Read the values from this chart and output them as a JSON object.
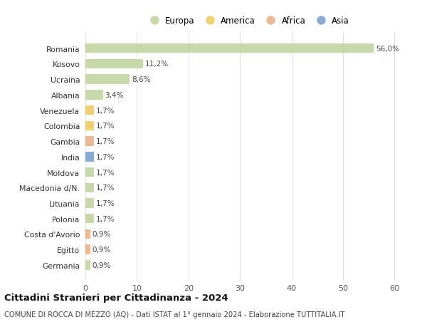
{
  "countries": [
    "Romania",
    "Kosovo",
    "Ucraina",
    "Albania",
    "Venezuela",
    "Colombia",
    "Gambia",
    "India",
    "Moldova",
    "Macedonia d/N.",
    "Lituania",
    "Polonia",
    "Costa d'Avorio",
    "Egitto",
    "Germania"
  ],
  "values": [
    56.0,
    11.2,
    8.6,
    3.4,
    1.7,
    1.7,
    1.7,
    1.7,
    1.7,
    1.7,
    1.7,
    1.7,
    0.9,
    0.9,
    0.9
  ],
  "labels": [
    "56,0%",
    "11,2%",
    "8,6%",
    "3,4%",
    "1,7%",
    "1,7%",
    "1,7%",
    "1,7%",
    "1,7%",
    "1,7%",
    "1,7%",
    "1,7%",
    "0,9%",
    "0,9%",
    "0,9%"
  ],
  "continents": [
    "Europa",
    "Europa",
    "Europa",
    "Europa",
    "America",
    "America",
    "Africa",
    "Asia",
    "Europa",
    "Europa",
    "Europa",
    "Europa",
    "Africa",
    "Africa",
    "Europa"
  ],
  "colors": {
    "Europa": "#b5cc8e",
    "America": "#f0c040",
    "Africa": "#e8a070",
    "Asia": "#6090c8"
  },
  "legend_order": [
    "Europa",
    "America",
    "Africa",
    "Asia"
  ],
  "xlim": [
    0,
    63
  ],
  "xticks": [
    0,
    10,
    20,
    30,
    40,
    50,
    60
  ],
  "title": "Cittadini Stranieri per Cittadinanza - 2024",
  "subtitle": "COMUNE DI ROCCA DI MEZZO (AQ) - Dati ISTAT al 1° gennaio 2024 - Elaborazione TUTTITALIA.IT",
  "bg_color": "#ffffff",
  "bar_alpha": 0.75,
  "grid_color": "#e0e0e0"
}
